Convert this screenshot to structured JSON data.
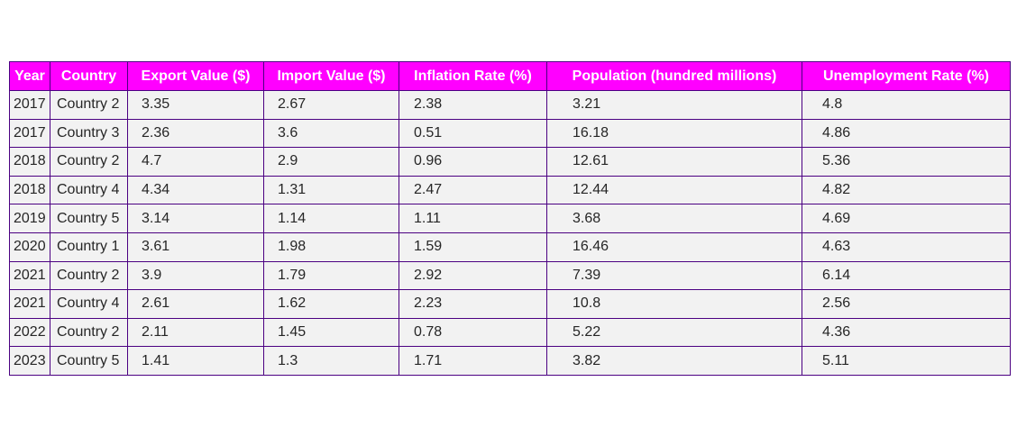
{
  "chart_data": {
    "type": "table",
    "columns": [
      "Year",
      "Country",
      "Export Value ($)",
      "Import Value ($)",
      "Inflation Rate (%)",
      "Population (hundred millions)",
      "Unemployment Rate (%)"
    ],
    "rows": [
      [
        "2017",
        "Country 2",
        "3.35",
        "2.67",
        "2.38",
        "3.21",
        "4.8"
      ],
      [
        "2017",
        "Country 3",
        "2.36",
        "3.6",
        "0.51",
        "16.18",
        "4.86"
      ],
      [
        "2018",
        "Country 2",
        "4.7",
        "2.9",
        "0.96",
        "12.61",
        "5.36"
      ],
      [
        "2018",
        "Country 4",
        "4.34",
        "1.31",
        "2.47",
        "12.44",
        "4.82"
      ],
      [
        "2019",
        "Country 5",
        "3.14",
        "1.14",
        "1.11",
        "3.68",
        "4.69"
      ],
      [
        "2020",
        "Country 1",
        "3.61",
        "1.98",
        "1.59",
        "16.46",
        "4.63"
      ],
      [
        "2021",
        "Country 2",
        "3.9",
        "1.79",
        "2.92",
        "7.39",
        "6.14"
      ],
      [
        "2021",
        "Country 4",
        "2.61",
        "1.62",
        "2.23",
        "10.8",
        "2.56"
      ],
      [
        "2022",
        "Country 2",
        "2.11",
        "1.45",
        "0.78",
        "5.22",
        "4.36"
      ],
      [
        "2023",
        "Country 5",
        "1.41",
        "1.3",
        "1.71",
        "3.82",
        "5.11"
      ]
    ],
    "header_color": "#ff00ff",
    "header_text_color": "#ffffff",
    "cell_color": "#f2f2f2",
    "border_color": "#4b0082"
  }
}
